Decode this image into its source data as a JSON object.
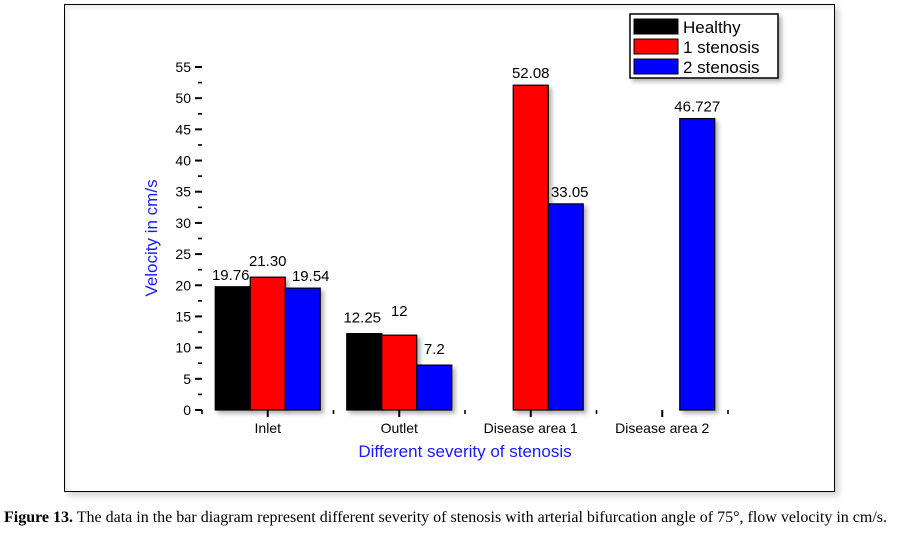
{
  "chart_data": {
    "type": "bar",
    "title": "",
    "xlabel": "Different severity of stenosis",
    "ylabel": "Velocity in cm/s",
    "ylim": [
      0,
      55
    ],
    "yticks": [
      0,
      5,
      10,
      15,
      20,
      25,
      30,
      35,
      40,
      45,
      50,
      55
    ],
    "grid": false,
    "legend_position": "top-right",
    "categories": [
      "Inlet",
      "Outlet",
      "Disease area 1",
      "Disease area 2"
    ],
    "series": [
      {
        "name": "Healthy",
        "color": "#000000",
        "values": [
          19.76,
          12.25,
          null,
          null
        ],
        "labels": [
          "19.76",
          "12.25",
          null,
          null
        ]
      },
      {
        "name": "1 stenosis",
        "color": "#ff0000",
        "values": [
          21.3,
          12,
          52.08,
          null
        ],
        "labels": [
          "21.30",
          "12",
          "52.08",
          null
        ]
      },
      {
        "name": "2 stenosis",
        "color": "#0000ff",
        "values": [
          19.54,
          7.2,
          33.05,
          46.727
        ],
        "labels": [
          "19.54",
          "7.2",
          "33.05",
          "46.727"
        ]
      }
    ]
  },
  "caption": {
    "label": "Figure 13.",
    "text": " The data in the bar diagram represent different severity of stenosis with arterial bifurcation angle of 75°, flow velocity in cm/s."
  }
}
